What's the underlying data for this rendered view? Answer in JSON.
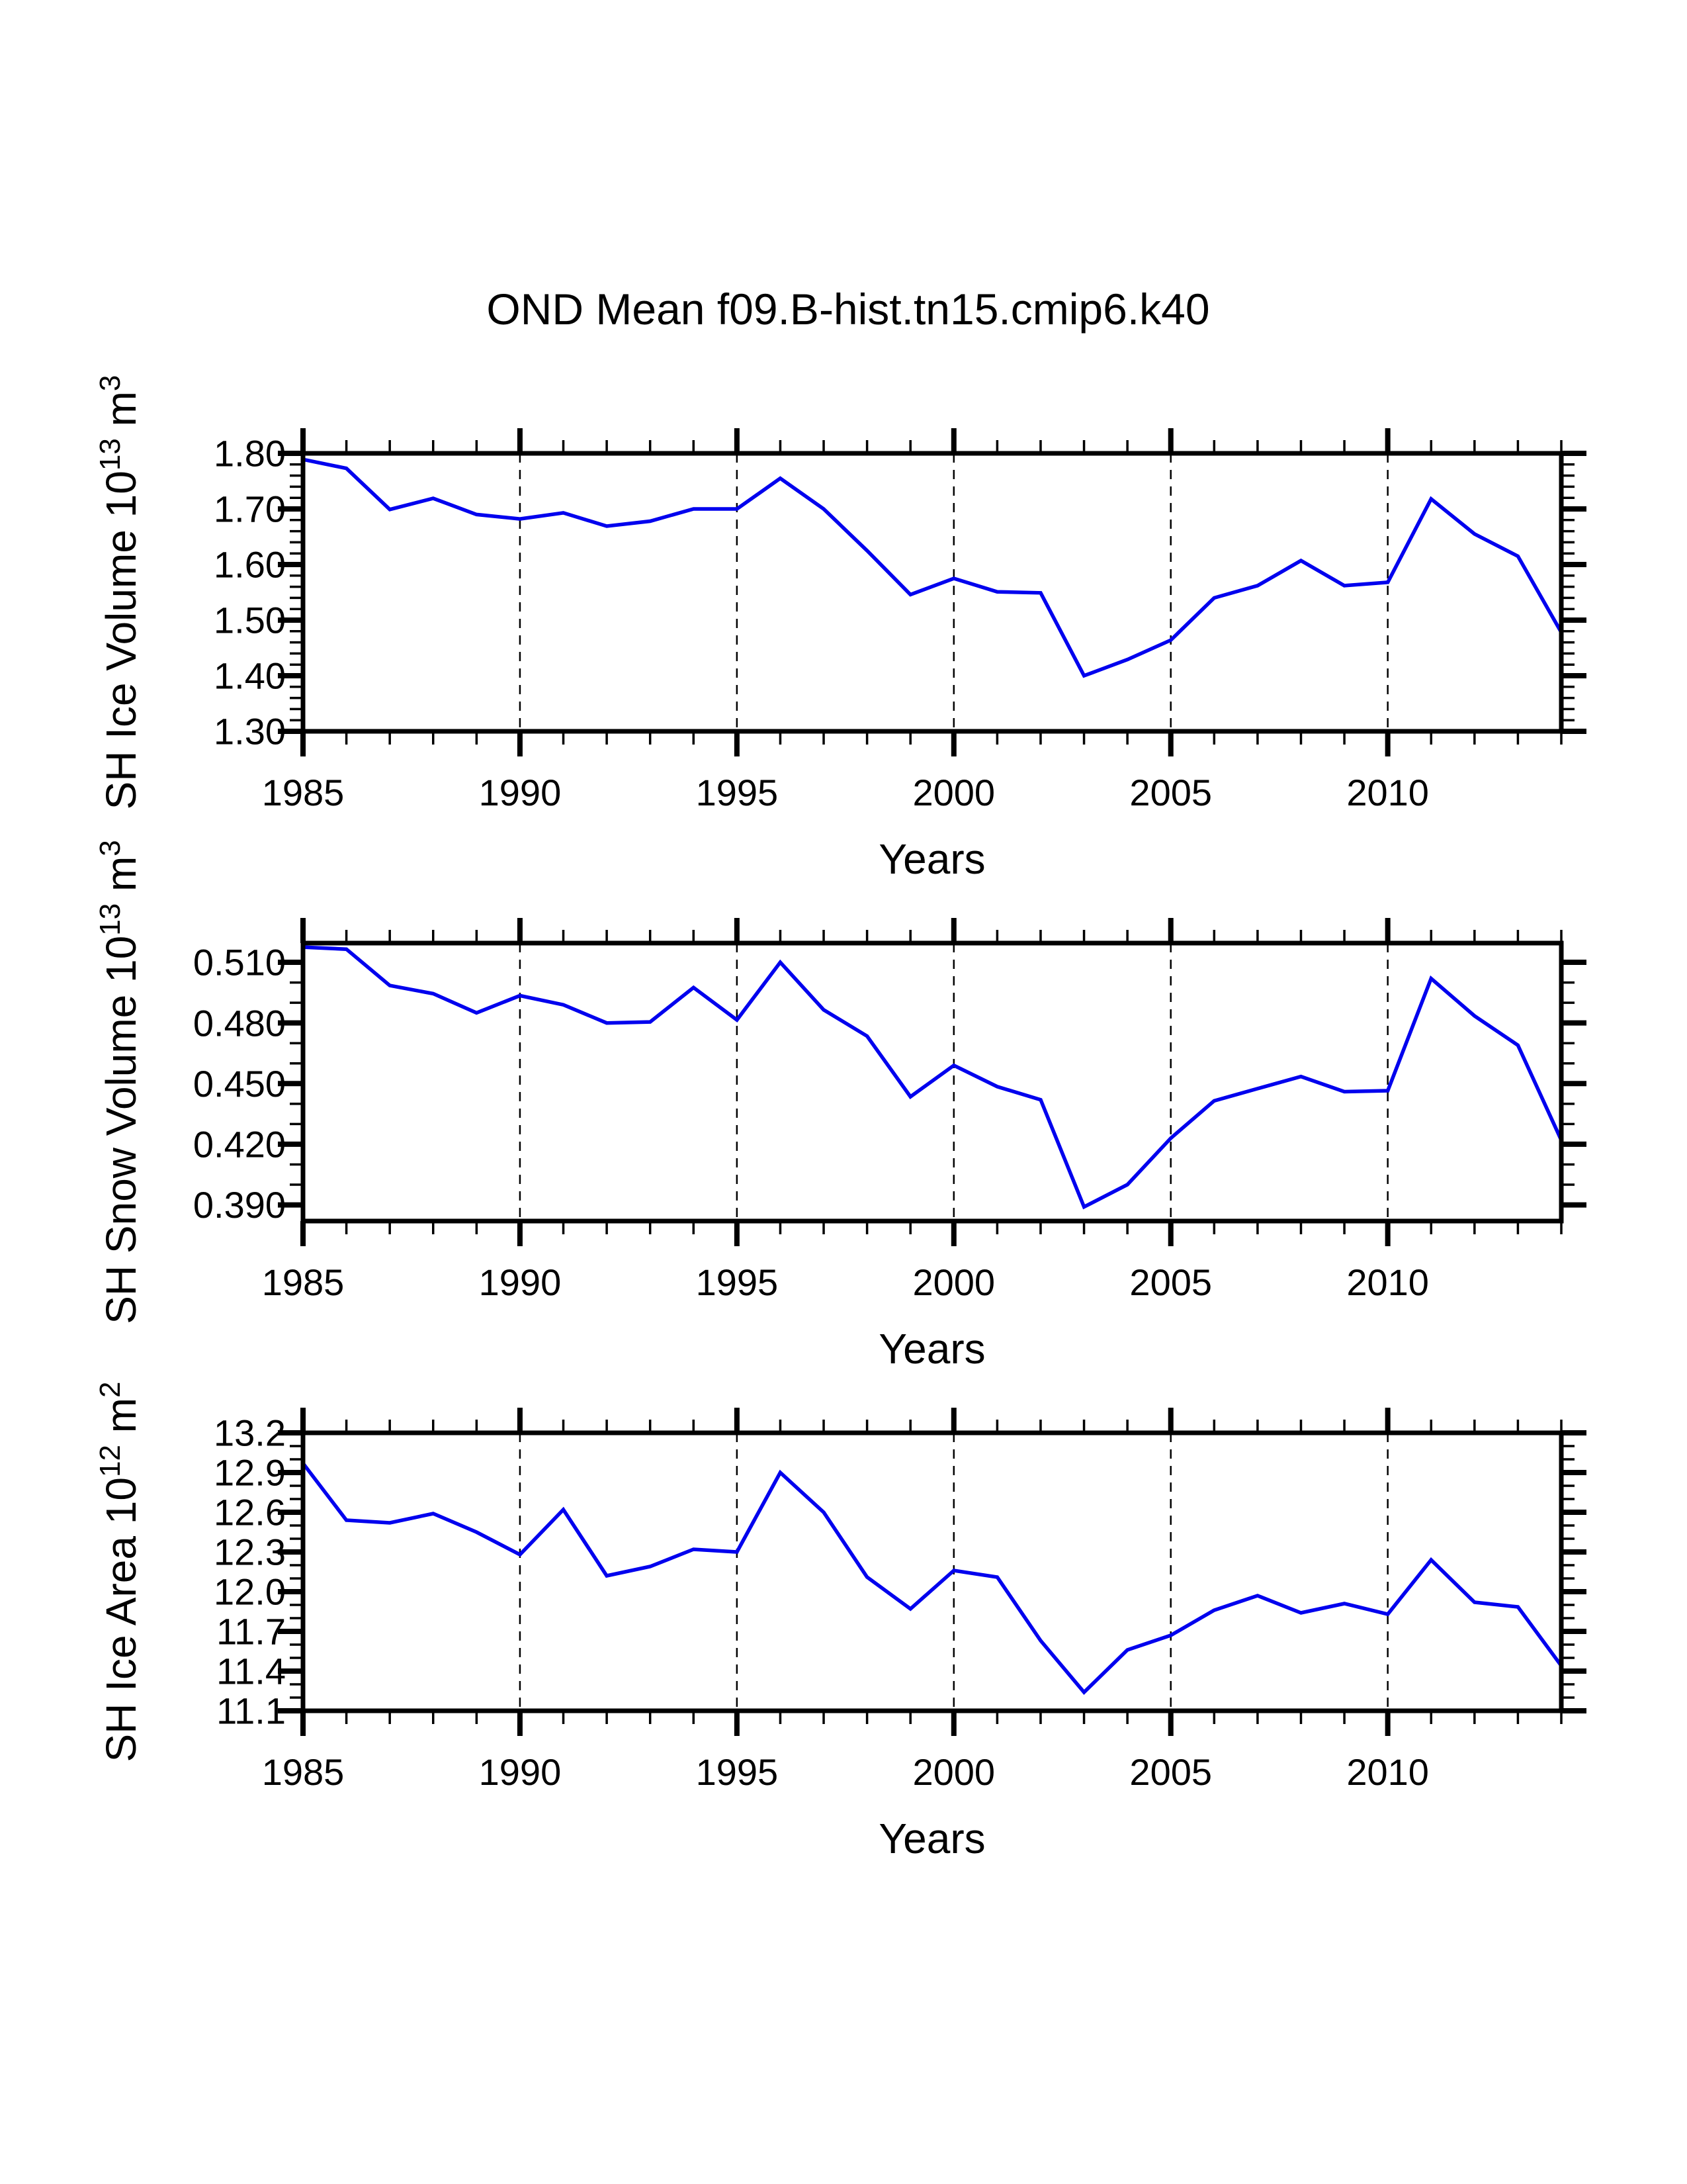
{
  "figure": {
    "title": "OND Mean f09.B-hist.tn15.cmip6.k40",
    "background_color": "#ffffff",
    "text_color": "#000000",
    "line_color": "#0000EE"
  },
  "chart_data": [
    {
      "id": "sh-ice-volume",
      "type": "line",
      "title": "",
      "xlabel": "Years",
      "ylabel_text": "SH Ice Volume 10^13 m^3",
      "ylabel_parts": [
        {
          "t": "SH Ice Volume 10"
        },
        {
          "t": "13",
          "sup": true
        },
        {
          "t": " m"
        },
        {
          "t": "3",
          "sup": true
        }
      ],
      "xlim": [
        1985,
        2014
      ],
      "ylim": [
        1.3,
        1.8
      ],
      "grid": "vertical-dashed",
      "grid_x": [
        1990,
        1995,
        2000,
        2005,
        2010
      ],
      "xticks": [
        {
          "v": 1985,
          "label": "1985"
        },
        {
          "v": 1990,
          "label": "1990"
        },
        {
          "v": 1995,
          "label": "1995"
        },
        {
          "v": 2000,
          "label": "2000"
        },
        {
          "v": 2005,
          "label": "2005"
        },
        {
          "v": 2010,
          "label": "2010"
        }
      ],
      "xminor_step": 1,
      "yticks": [
        {
          "v": 1.3,
          "label": "1.30"
        },
        {
          "v": 1.4,
          "label": "1.40"
        },
        {
          "v": 1.5,
          "label": "1.50"
        },
        {
          "v": 1.6,
          "label": "1.60"
        },
        {
          "v": 1.7,
          "label": "1.70"
        },
        {
          "v": 1.8,
          "label": "1.80"
        }
      ],
      "yminor_step": 0.02,
      "x": [
        1985,
        1986,
        1987,
        1988,
        1989,
        1990,
        1991,
        1992,
        1993,
        1994,
        1995,
        1996,
        1997,
        1998,
        1999,
        2000,
        2001,
        2002,
        2003,
        2004,
        2005,
        2006,
        2007,
        2008,
        2009,
        2010,
        2011,
        2012,
        2013,
        2014
      ],
      "values": [
        1.789,
        1.773,
        1.699,
        1.719,
        1.69,
        1.682,
        1.693,
        1.669,
        1.678,
        1.7,
        1.7,
        1.755,
        1.7,
        1.625,
        1.546,
        1.575,
        1.551,
        1.549,
        1.4,
        1.429,
        1.464,
        1.54,
        1.562,
        1.607,
        1.562,
        1.568,
        1.718,
        1.655,
        1.615,
        1.478
      ],
      "line_color": "#0000EE"
    },
    {
      "id": "sh-snow-volume",
      "type": "line",
      "title": "",
      "xlabel": "Years",
      "ylabel_text": "SH Snow Volume 10^13 m^3",
      "ylabel_parts": [
        {
          "t": "SH Snow Volume 10"
        },
        {
          "t": "13",
          "sup": true
        },
        {
          "t": " m"
        },
        {
          "t": "3",
          "sup": true
        }
      ],
      "xlim": [
        1985,
        2014
      ],
      "ylim": [
        0.382,
        0.5195
      ],
      "grid": "vertical-dashed",
      "grid_x": [
        1990,
        1995,
        2000,
        2005,
        2010
      ],
      "xticks": [
        {
          "v": 1985,
          "label": "1985"
        },
        {
          "v": 1990,
          "label": "1990"
        },
        {
          "v": 1995,
          "label": "1995"
        },
        {
          "v": 2000,
          "label": "2000"
        },
        {
          "v": 2005,
          "label": "2005"
        },
        {
          "v": 2010,
          "label": "2010"
        }
      ],
      "xminor_step": 1,
      "yticks": [
        {
          "v": 0.39,
          "label": "0.390"
        },
        {
          "v": 0.42,
          "label": "0.420"
        },
        {
          "v": 0.45,
          "label": "0.450"
        },
        {
          "v": 0.48,
          "label": "0.480"
        },
        {
          "v": 0.51,
          "label": "0.510"
        }
      ],
      "yminor_step": 0.01,
      "x": [
        1985,
        1986,
        1987,
        1988,
        1989,
        1990,
        1991,
        1992,
        1993,
        1994,
        1995,
        1996,
        1997,
        1998,
        1999,
        2000,
        2001,
        2002,
        2003,
        2004,
        2005,
        2006,
        2007,
        2008,
        2009,
        2010,
        2011,
        2012,
        2013,
        2014
      ],
      "values": [
        0.5175,
        0.5165,
        0.4985,
        0.4945,
        0.485,
        0.4935,
        0.489,
        0.48,
        0.4805,
        0.4975,
        0.4815,
        0.51,
        0.4865,
        0.4735,
        0.4435,
        0.459,
        0.4485,
        0.442,
        0.389,
        0.4,
        0.423,
        0.4415,
        0.4475,
        0.4535,
        0.446,
        0.4465,
        0.502,
        0.4835,
        0.469,
        0.422
      ],
      "line_color": "#0000EE"
    },
    {
      "id": "sh-ice-area",
      "type": "line",
      "title": "",
      "xlabel": "Years",
      "ylabel_text": "SH Ice Area 10^12 m^2",
      "ylabel_parts": [
        {
          "t": "SH Ice Area 10"
        },
        {
          "t": "12",
          "sup": true
        },
        {
          "t": " m"
        },
        {
          "t": "2",
          "sup": true
        }
      ],
      "xlim": [
        1985,
        2014
      ],
      "ylim": [
        11.1,
        13.2
      ],
      "grid": "vertical-dashed",
      "grid_x": [
        1990,
        1995,
        2000,
        2005,
        2010
      ],
      "xticks": [
        {
          "v": 1985,
          "label": "1985"
        },
        {
          "v": 1990,
          "label": "1990"
        },
        {
          "v": 1995,
          "label": "1995"
        },
        {
          "v": 2000,
          "label": "2000"
        },
        {
          "v": 2005,
          "label": "2005"
        },
        {
          "v": 2010,
          "label": "2010"
        }
      ],
      "xminor_step": 1,
      "yticks": [
        {
          "v": 11.1,
          "label": "11.1"
        },
        {
          "v": 11.4,
          "label": "11.4"
        },
        {
          "v": 11.7,
          "label": "11.7"
        },
        {
          "v": 12.0,
          "label": "12.0"
        },
        {
          "v": 12.3,
          "label": "12.3"
        },
        {
          "v": 12.6,
          "label": "12.6"
        },
        {
          "v": 12.9,
          "label": "12.9"
        },
        {
          "v": 13.2,
          "label": "13.2"
        }
      ],
      "yminor_step": 0.1,
      "x": [
        1985,
        1986,
        1987,
        1988,
        1989,
        1990,
        1991,
        1992,
        1993,
        1994,
        1995,
        1996,
        1997,
        1998,
        1999,
        2000,
        2001,
        2002,
        2003,
        2004,
        2005,
        2006,
        2007,
        2008,
        2009,
        2010,
        2011,
        2012,
        2013,
        2014
      ],
      "values": [
        12.97,
        12.54,
        12.52,
        12.59,
        12.45,
        12.28,
        12.62,
        12.12,
        12.19,
        12.32,
        12.3,
        12.9,
        12.6,
        12.11,
        11.87,
        12.16,
        12.11,
        11.63,
        11.24,
        11.56,
        11.67,
        11.86,
        11.97,
        11.84,
        11.91,
        11.83,
        12.24,
        11.92,
        11.885,
        11.44
      ],
      "line_color": "#0000EE"
    }
  ]
}
